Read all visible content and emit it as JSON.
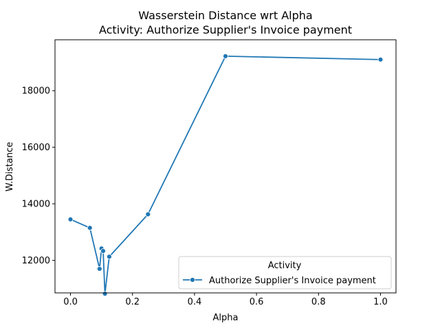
{
  "chart_data": {
    "type": "line",
    "title": "Wasserstein Distance wrt Alpha",
    "subtitle": "Activity: Authorize Supplier's Invoice payment",
    "xlabel": "Alpha",
    "ylabel": "W.Distance",
    "xlim": [
      -0.05,
      1.05
    ],
    "ylim": [
      10850,
      19800
    ],
    "xticks": [
      0.0,
      0.2,
      0.4,
      0.6,
      0.8,
      1.0
    ],
    "xtick_labels": [
      "0.0",
      "0.2",
      "0.4",
      "0.6",
      "0.8",
      "1.0"
    ],
    "yticks": [
      12000,
      14000,
      16000,
      18000
    ],
    "ytick_labels": [
      "12000",
      "14000",
      "16000",
      "18000"
    ],
    "grid": false,
    "legend_title": "Activity",
    "legend_position": "lower-right",
    "series": [
      {
        "name": "Authorize Supplier's Invoice payment",
        "color": "#1f77b4",
        "marker": "circle",
        "x": [
          0.0,
          0.0625,
          0.0938,
          0.1,
          0.1053,
          0.1111,
          0.125,
          0.25,
          0.5,
          1.0
        ],
        "y": [
          13450,
          13150,
          11700,
          12420,
          12330,
          10820,
          12130,
          13630,
          19220,
          19100
        ]
      }
    ]
  }
}
